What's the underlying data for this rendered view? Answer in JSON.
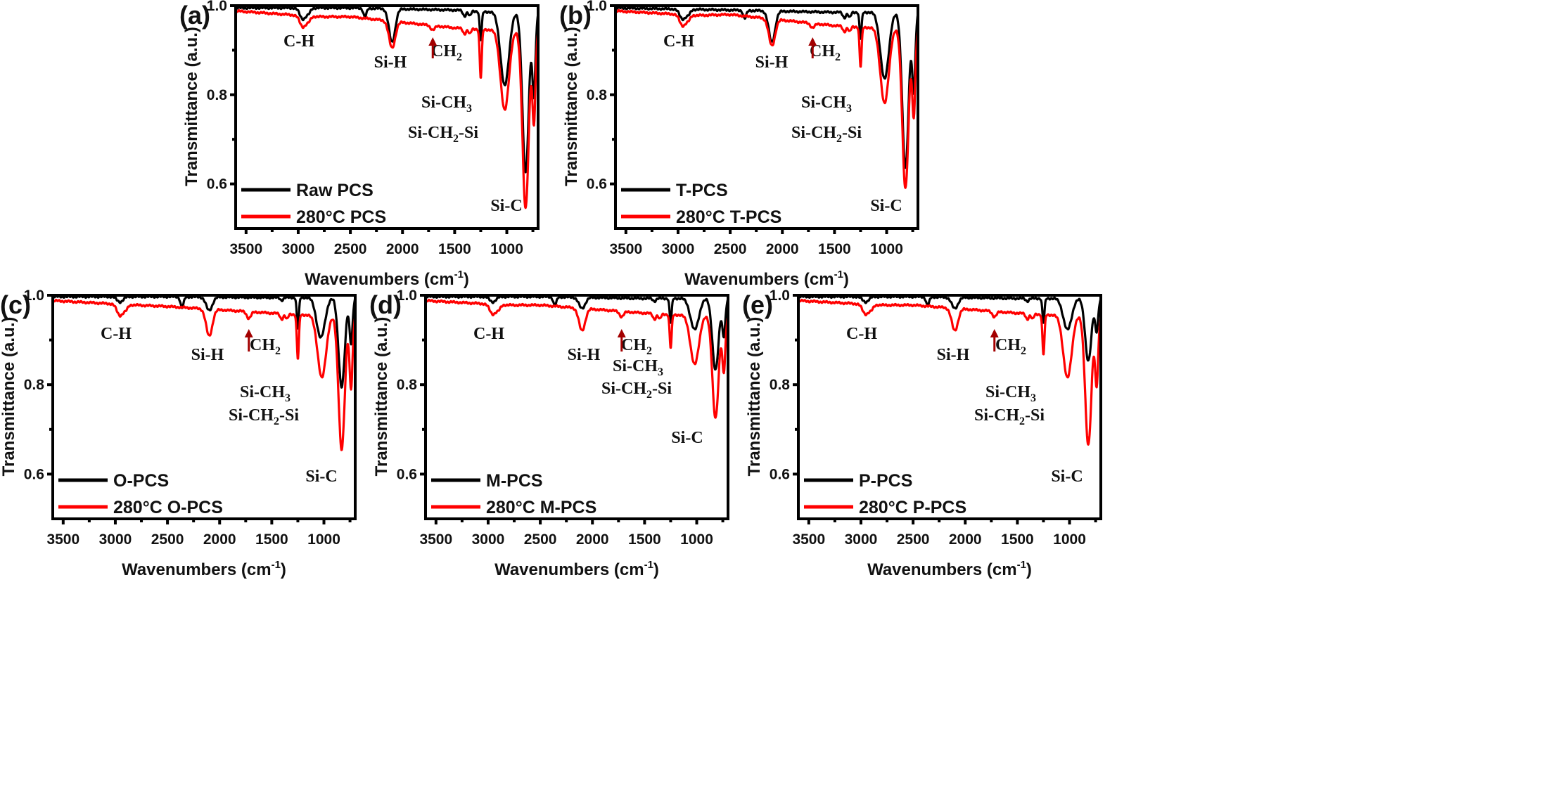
{
  "chart_data": [
    {
      "panel": "(a)",
      "type": "line",
      "xlabel": "Wavenumbers (cm-1)",
      "ylabel": "Transmittance (a.u.)",
      "xlim": [
        3600,
        700
      ],
      "x_reversed": true,
      "ylim": [
        0.5,
        1.0
      ],
      "xticks": [
        3500,
        3000,
        2500,
        2000,
        1500,
        1000
      ],
      "yticks": [
        0.6,
        0.8,
        1.0
      ],
      "legend_position": "bottom-left",
      "series": [
        {
          "name": "Raw PCS",
          "color": "#000000",
          "baseline": [
            [
              3600,
              0.995
            ],
            [
              2500,
              0.995
            ],
            [
              1500,
              0.99
            ],
            [
              1100,
              0.985
            ]
          ],
          "peaks": [
            [
              2955,
              0.025,
              30
            ],
            [
              2900,
              0.01,
              20
            ],
            [
              2360,
              0.02,
              15
            ],
            [
              2100,
              0.075,
              30
            ],
            [
              1405,
              0.012,
              15
            ],
            [
              1355,
              0.012,
              12
            ],
            [
              1250,
              0.065,
              10
            ],
            [
              1020,
              0.165,
              40
            ],
            [
              820,
              0.36,
              30
            ],
            [
              740,
              0.18,
              15
            ]
          ]
        },
        {
          "name": "280°C PCS",
          "color": "#ff0000",
          "baseline": [
            [
              3600,
              0.988
            ],
            [
              2800,
              0.975
            ],
            [
              2500,
              0.975
            ],
            [
              1500,
              0.95
            ],
            [
              1100,
              0.945
            ]
          ],
          "peaks": [
            [
              2955,
              0.025,
              30
            ],
            [
              2900,
              0.01,
              20
            ],
            [
              2100,
              0.06,
              30
            ],
            [
              1710,
              0.01,
              20
            ],
            [
              1405,
              0.012,
              15
            ],
            [
              1355,
              0.012,
              12
            ],
            [
              1250,
              0.11,
              10
            ],
            [
              1020,
              0.18,
              40
            ],
            [
              820,
              0.4,
              30
            ],
            [
              740,
              0.2,
              15
            ]
          ]
        }
      ],
      "annotations": [
        "C-H",
        "Si-H",
        "CH2",
        "Si-CH3",
        "Si-CH2-Si",
        "Si-C"
      ],
      "arrow_at": 1710
    },
    {
      "panel": "(b)",
      "type": "line",
      "xlabel": "Wavenumbers (cm-1)",
      "ylabel": "Transmittance (a.u.)",
      "xlim": [
        3600,
        700
      ],
      "x_reversed": true,
      "ylim": [
        0.5,
        1.0
      ],
      "xticks": [
        3500,
        3000,
        2500,
        2000,
        1500,
        1000
      ],
      "yticks": [
        0.6,
        0.8,
        1.0
      ],
      "legend_position": "bottom-left",
      "series": [
        {
          "name": "T-PCS",
          "color": "#000000",
          "baseline": [
            [
              3600,
              0.995
            ],
            [
              2500,
              0.99
            ],
            [
              1500,
              0.985
            ],
            [
              1100,
              0.985
            ]
          ],
          "peaks": [
            [
              2955,
              0.022,
              30
            ],
            [
              2900,
              0.01,
              20
            ],
            [
              2360,
              0.018,
              15
            ],
            [
              2100,
              0.07,
              30
            ],
            [
              1405,
              0.012,
              15
            ],
            [
              1355,
              0.012,
              12
            ],
            [
              1250,
              0.06,
              10
            ],
            [
              1020,
              0.15,
              40
            ],
            [
              820,
              0.35,
              30
            ],
            [
              740,
              0.17,
              15
            ]
          ]
        },
        {
          "name": "280°C T-PCS",
          "color": "#ff0000",
          "baseline": [
            [
              3600,
              0.988
            ],
            [
              2800,
              0.978
            ],
            [
              2500,
              0.98
            ],
            [
              1500,
              0.955
            ],
            [
              1100,
              0.95
            ]
          ],
          "peaks": [
            [
              2955,
              0.025,
              30
            ],
            [
              2900,
              0.01,
              20
            ],
            [
              2100,
              0.06,
              30
            ],
            [
              1710,
              0.01,
              20
            ],
            [
              1405,
              0.012,
              15
            ],
            [
              1355,
              0.012,
              12
            ],
            [
              1250,
              0.09,
              10
            ],
            [
              1020,
              0.17,
              40
            ],
            [
              820,
              0.36,
              30
            ],
            [
              740,
              0.19,
              15
            ]
          ]
        }
      ],
      "annotations": [
        "C-H",
        "Si-H",
        "CH2",
        "Si-CH3",
        "Si-CH2-Si",
        "Si-C"
      ],
      "arrow_at": 1710
    },
    {
      "panel": "(c)",
      "type": "line",
      "xlabel": "Wavenumbers (cm-1)",
      "ylabel": "Transmittance (a.u.)",
      "xlim": [
        3600,
        700
      ],
      "x_reversed": true,
      "ylim": [
        0.5,
        1.0
      ],
      "xticks": [
        3500,
        3000,
        2500,
        2000,
        1500,
        1000
      ],
      "yticks": [
        0.6,
        0.8,
        1.0
      ],
      "legend_position": "bottom-left",
      "series": [
        {
          "name": "O-PCS",
          "color": "#000000",
          "baseline": [
            [
              3600,
              0.997
            ],
            [
              2500,
              0.997
            ],
            [
              1500,
              0.995
            ],
            [
              1100,
              0.995
            ]
          ],
          "peaks": [
            [
              2955,
              0.012,
              30
            ],
            [
              2360,
              0.025,
              15
            ],
            [
              2100,
              0.03,
              30
            ],
            [
              1405,
              0.006,
              15
            ],
            [
              1250,
              0.07,
              10
            ],
            [
              1030,
              0.09,
              40
            ],
            [
              830,
              0.2,
              30
            ],
            [
              740,
              0.1,
              15
            ]
          ]
        },
        {
          "name": "280°C O-PCS",
          "color": "#ff0000",
          "baseline": [
            [
              3600,
              0.988
            ],
            [
              2800,
              0.978
            ],
            [
              2500,
              0.975
            ],
            [
              1500,
              0.96
            ],
            [
              1100,
              0.955
            ]
          ],
          "peaks": [
            [
              2955,
              0.025,
              30
            ],
            [
              2900,
              0.01,
              20
            ],
            [
              2100,
              0.06,
              30
            ],
            [
              1720,
              0.015,
              20
            ],
            [
              1405,
              0.012,
              15
            ],
            [
              1355,
              0.012,
              12
            ],
            [
              1250,
              0.1,
              10
            ],
            [
              1020,
              0.14,
              40
            ],
            [
              830,
              0.3,
              30
            ],
            [
              740,
              0.16,
              15
            ]
          ]
        }
      ],
      "annotations": [
        "C-H",
        "Si-H",
        "CH2",
        "Si-CH3",
        "Si-CH2-Si",
        "Si-C"
      ],
      "arrow_at": 1720
    },
    {
      "panel": "(d)",
      "type": "line",
      "xlabel": "Wavenumbers (cm-1)",
      "ylabel": "Transmittance (a.u.)",
      "xlim": [
        3600,
        700
      ],
      "x_reversed": true,
      "ylim": [
        0.5,
        1.0
      ],
      "xticks": [
        3500,
        3000,
        2500,
        2000,
        1500,
        1000
      ],
      "yticks": [
        0.6,
        0.8,
        1.0
      ],
      "legend_position": "bottom-left",
      "series": [
        {
          "name": "M-PCS",
          "color": "#000000",
          "baseline": [
            [
              3600,
              0.997
            ],
            [
              2500,
              0.997
            ],
            [
              1500,
              0.993
            ],
            [
              1100,
              0.993
            ]
          ],
          "peaks": [
            [
              2955,
              0.012,
              30
            ],
            [
              2360,
              0.02,
              15
            ],
            [
              2100,
              0.025,
              30
            ],
            [
              1405,
              0.006,
              15
            ],
            [
              1250,
              0.055,
              10
            ],
            [
              1020,
              0.07,
              40
            ],
            [
              820,
              0.16,
              30
            ],
            [
              740,
              0.08,
              15
            ]
          ]
        },
        {
          "name": "280°C M-PCS",
          "color": "#ff0000",
          "baseline": [
            [
              3600,
              0.988
            ],
            [
              2800,
              0.978
            ],
            [
              2500,
              0.978
            ],
            [
              1500,
              0.96
            ],
            [
              1100,
              0.955
            ]
          ],
          "peaks": [
            [
              2955,
              0.022,
              30
            ],
            [
              2900,
              0.01,
              20
            ],
            [
              2100,
              0.05,
              30
            ],
            [
              1720,
              0.012,
              20
            ],
            [
              1405,
              0.012,
              15
            ],
            [
              1355,
              0.012,
              12
            ],
            [
              1250,
              0.075,
              10
            ],
            [
              1020,
              0.11,
              40
            ],
            [
              820,
              0.23,
              30
            ],
            [
              740,
              0.12,
              15
            ]
          ]
        }
      ],
      "annotations": [
        "C-H",
        "Si-H",
        "CH2",
        "Si-CH3",
        "Si-CH2-Si",
        "Si-C"
      ],
      "arrow_at": 1720
    },
    {
      "panel": "(e)",
      "type": "line",
      "xlabel": "Wavenumbers (cm-1)",
      "ylabel": "Transmittance (a.u.)",
      "xlim": [
        3600,
        700
      ],
      "x_reversed": true,
      "ylim": [
        0.5,
        1.0
      ],
      "xticks": [
        3500,
        3000,
        2500,
        2000,
        1500,
        1000
      ],
      "yticks": [
        0.6,
        0.8,
        1.0
      ],
      "legend_position": "bottom-left",
      "series": [
        {
          "name": "P-PCS",
          "color": "#000000",
          "baseline": [
            [
              3600,
              0.997
            ],
            [
              2500,
              0.997
            ],
            [
              1500,
              0.993
            ],
            [
              1100,
              0.993
            ]
          ],
          "peaks": [
            [
              2955,
              0.012,
              30
            ],
            [
              2360,
              0.02,
              15
            ],
            [
              2100,
              0.025,
              30
            ],
            [
              1405,
              0.006,
              15
            ],
            [
              1250,
              0.055,
              10
            ],
            [
              1020,
              0.07,
              40
            ],
            [
              820,
              0.14,
              30
            ],
            [
              740,
              0.07,
              15
            ]
          ]
        },
        {
          "name": "280°C P-PCS",
          "color": "#ff0000",
          "baseline": [
            [
              3600,
              0.988
            ],
            [
              2800,
              0.978
            ],
            [
              2500,
              0.978
            ],
            [
              1500,
              0.96
            ],
            [
              1100,
              0.955
            ]
          ],
          "peaks": [
            [
              2955,
              0.022,
              30
            ],
            [
              2900,
              0.01,
              20
            ],
            [
              2100,
              0.05,
              30
            ],
            [
              1720,
              0.012,
              20
            ],
            [
              1405,
              0.012,
              15
            ],
            [
              1355,
              0.012,
              12
            ],
            [
              1250,
              0.09,
              10
            ],
            [
              1020,
              0.14,
              40
            ],
            [
              820,
              0.29,
              30
            ],
            [
              740,
              0.15,
              15
            ]
          ]
        }
      ],
      "annotations": [
        "C-H",
        "Si-H",
        "CH2",
        "Si-CH3",
        "Si-CH2-Si",
        "Si-C"
      ],
      "arrow_at": 1720
    }
  ],
  "labels": {
    "xlabel_main": "Wavenumbers (cm",
    "xlabel_sup": "-1",
    "xlabel_close": ")",
    "ylabel": "Transmittance (a.u.)",
    "anno_CH": "C-H",
    "anno_SiH": "Si-H",
    "anno_CH2_main": "CH",
    "anno_CH2_sub": "2",
    "anno_SiCH3_main": "Si-CH",
    "anno_SiCH3_sub": "3",
    "anno_SiCH2Si_main": "Si-CH",
    "anno_SiCH2Si_sub": "2",
    "anno_SiCH2Si_end": "-Si",
    "anno_SiC": "Si-C"
  },
  "colors": {
    "raw": "#000000",
    "heated": "#ff0000",
    "arrow": "#a30000"
  }
}
